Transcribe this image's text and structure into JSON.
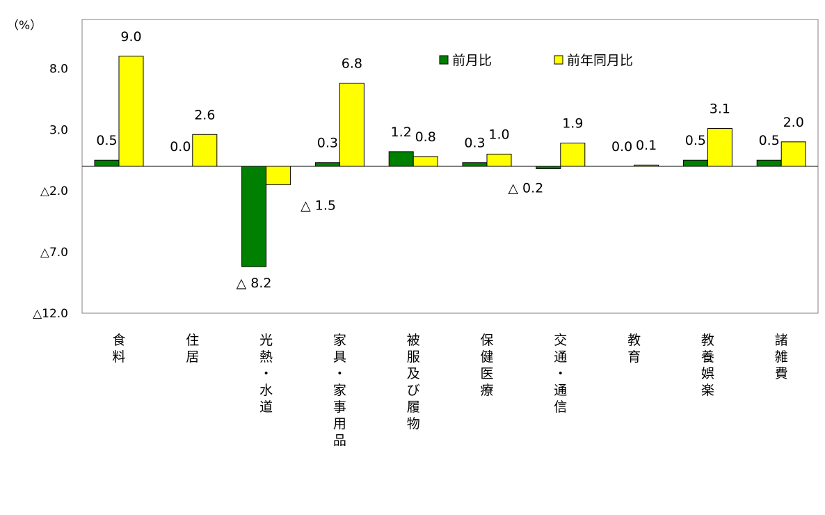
{
  "chart_data": {
    "type": "bar",
    "unit_label": "（%）",
    "categories": [
      "食料",
      "住居",
      "光熱・水道",
      "家具・家事用品",
      "被服及び履物",
      "保健医療",
      "交通・通信",
      "教育",
      "教養娯楽",
      "諸雑費"
    ],
    "series": [
      {
        "name": "前月比",
        "color": "#008000",
        "values": [
          0.5,
          0.0,
          -8.2,
          0.3,
          1.2,
          0.3,
          -0.2,
          0.0,
          0.5,
          0.5
        ],
        "labels": [
          "0.5",
          "0.0",
          "△ 8.2",
          "0.3",
          "1.2",
          "0.3",
          "△ 0.2",
          "0.0",
          "0.5",
          "0.5"
        ]
      },
      {
        "name": "前年同月比",
        "color": "#ffff00",
        "values": [
          9.0,
          2.6,
          -1.5,
          6.8,
          0.8,
          1.0,
          1.9,
          0.1,
          3.1,
          2.0
        ],
        "labels": [
          "9.0",
          "2.6",
          "△ 1.5",
          "6.8",
          "0.8",
          "1.0",
          "1.9",
          "0.1",
          "3.1",
          "2.0"
        ]
      }
    ],
    "yticks": [
      8.0,
      3.0,
      -2.0,
      -7.0,
      -12.0
    ],
    "ytick_labels": [
      "8.0",
      "3.0",
      "△2.0",
      "△7.0",
      "△12.0"
    ],
    "ylim": [
      -12.0,
      12.0
    ],
    "legend_position": "top-right",
    "grid": false
  }
}
